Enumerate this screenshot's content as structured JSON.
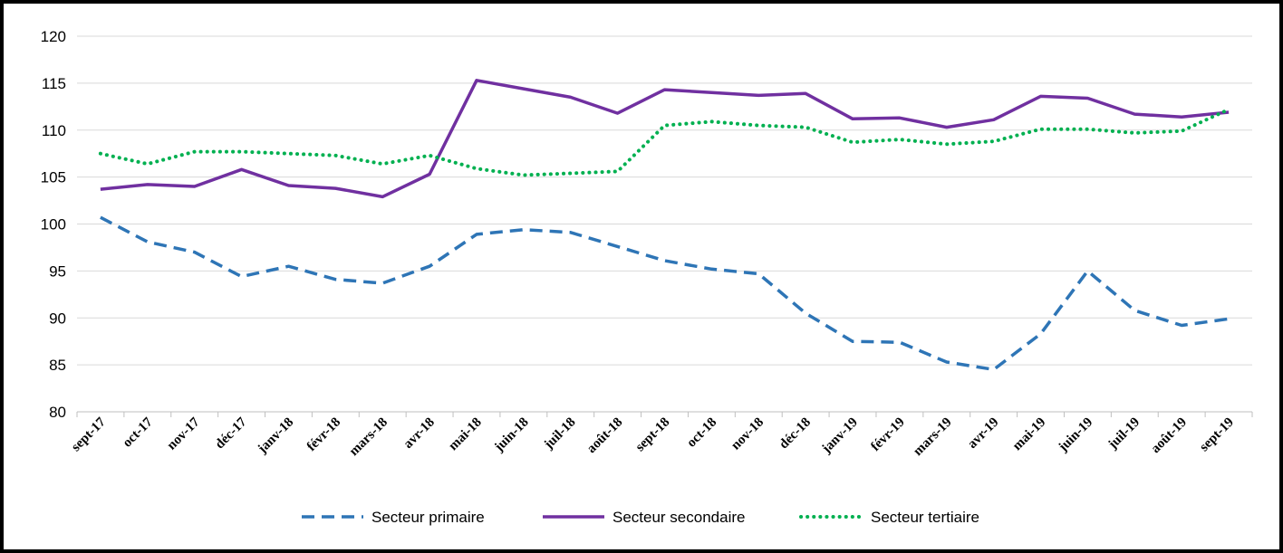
{
  "chart_data": {
    "type": "line",
    "title": "",
    "xlabel": "",
    "ylabel": "",
    "ylim": [
      80,
      120
    ],
    "yticks": [
      80,
      85,
      90,
      95,
      100,
      105,
      110,
      115,
      120
    ],
    "grid": "horizontal",
    "legend_position": "bottom",
    "categories": [
      "sept-17",
      "oct-17",
      "nov-17",
      "déc-17",
      "janv-18",
      "févr-18",
      "mars-18",
      "avr-18",
      "mai-18",
      "juin-18",
      "juil-18",
      "août-18",
      "sept-18",
      "oct-18",
      "nov-18",
      "déc-18",
      "janv-19",
      "févr-19",
      "mars-19",
      "avr-19",
      "mai-19",
      "juin-19",
      "juil-19",
      "août-19",
      "sept-19"
    ],
    "series": [
      {
        "name": "Secteur primaire",
        "color": "#2E75B6",
        "style": "dashed",
        "values": [
          100.7,
          98.1,
          97.0,
          94.4,
          95.5,
          94.1,
          93.7,
          95.5,
          98.9,
          99.4,
          99.1,
          97.6,
          96.1,
          95.2,
          94.7,
          90.5,
          87.5,
          87.4,
          85.3,
          84.5,
          88.3,
          95.0,
          90.8,
          89.2,
          89.9
        ]
      },
      {
        "name": "Secteur secondaire",
        "color": "#7030A0",
        "style": "solid",
        "values": [
          103.7,
          104.2,
          104.0,
          105.8,
          104.1,
          103.8,
          102.9,
          105.3,
          115.3,
          114.4,
          113.5,
          111.8,
          114.3,
          114.0,
          113.7,
          113.9,
          111.2,
          111.3,
          110.3,
          111.1,
          113.6,
          113.4,
          111.7,
          111.4,
          111.9
        ]
      },
      {
        "name": "Secteur tertiaire",
        "color": "#00B050",
        "style": "dotted",
        "values": [
          107.5,
          106.4,
          107.7,
          107.7,
          107.5,
          107.3,
          106.4,
          107.3,
          105.9,
          105.2,
          105.4,
          105.6,
          110.5,
          110.9,
          110.5,
          110.3,
          108.7,
          109.0,
          108.5,
          108.8,
          110.1,
          110.1,
          109.7,
          109.9,
          112.2
        ]
      }
    ]
  }
}
